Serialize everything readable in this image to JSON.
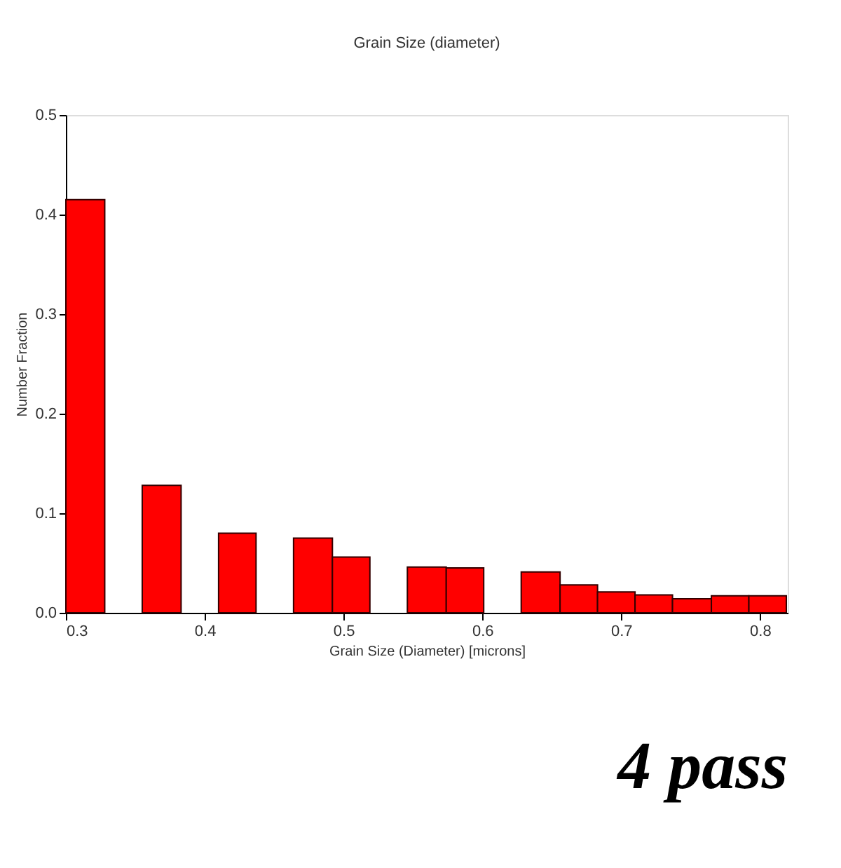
{
  "chart_data": {
    "type": "histogram",
    "title": "Grain Size (diameter)",
    "xlabel": "Grain Size (Diameter) [microns]",
    "ylabel": "Number Fraction",
    "bins": [
      0.3,
      0.328,
      0.355,
      0.383,
      0.41,
      0.437,
      0.464,
      0.492,
      0.519,
      0.546,
      0.574,
      0.601,
      0.628,
      0.656,
      0.683,
      0.71,
      0.737,
      0.765,
      0.792,
      0.819
    ],
    "values": [
      0.415,
      0,
      0.128,
      0,
      0.08,
      0,
      0.075,
      0.056,
      0,
      0.046,
      0.045,
      0,
      0.041,
      0.028,
      0.021,
      0.018,
      0.014,
      0.017,
      0.017
    ],
    "color": "#ff0000",
    "xlim": [
      0.3,
      0.82
    ],
    "xticks": [
      0.3,
      0.4,
      0.5,
      0.6,
      0.7,
      0.8
    ],
    "ylim": [
      0,
      0.5
    ],
    "yticks": [
      {
        "value": 0,
        "label": "0.0"
      },
      0.1,
      0.2,
      0.3,
      0.4,
      0.5
    ],
    "grid": false,
    "annotations": [
      "4 pass"
    ]
  }
}
